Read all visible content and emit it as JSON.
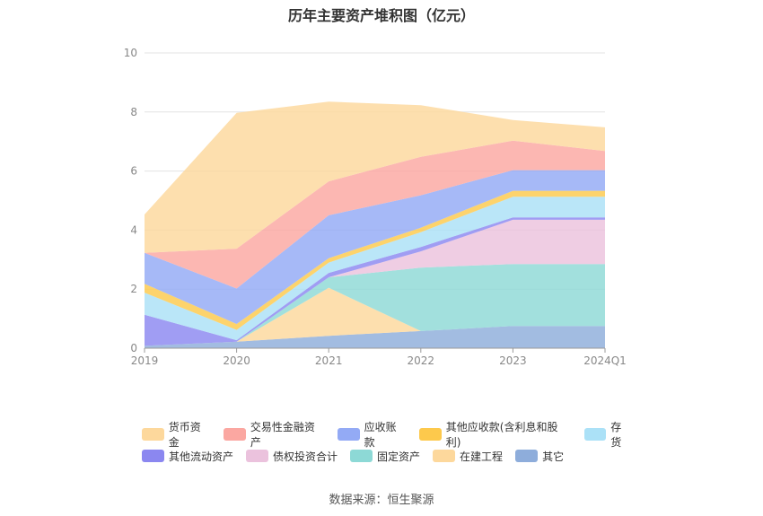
{
  "title": "历年主要资产堆积图（亿元）",
  "source": "数据来源：恒生聚源",
  "chart_data": {
    "type": "area",
    "stacked": true,
    "x": [
      "2019",
      "2020",
      "2021",
      "2022",
      "2023",
      "2024Q1"
    ],
    "ylim": [
      0,
      10
    ],
    "yticks": [
      0,
      2,
      4,
      6,
      8,
      10
    ],
    "grid": true,
    "legend_position": "bottom",
    "series": [
      {
        "name": "其它",
        "color": "#8eaddb",
        "values": [
          0.08,
          0.22,
          0.42,
          0.58,
          0.75,
          0.75
        ]
      },
      {
        "name": "在建工程",
        "color": "#fdd89c",
        "values": [
          0.0,
          0.0,
          1.63,
          0.0,
          0.0,
          0.0
        ]
      },
      {
        "name": "固定资产",
        "color": "#8dd9d6",
        "values": [
          0.0,
          0.0,
          0.35,
          2.15,
          2.1,
          2.1
        ]
      },
      {
        "name": "债权投资合计",
        "color": "#ebc2dd",
        "values": [
          0.0,
          0.0,
          0.0,
          0.55,
          1.5,
          1.5
        ]
      },
      {
        "name": "其他流动资产",
        "color": "#8b87f0",
        "values": [
          1.05,
          0.05,
          0.15,
          0.15,
          0.08,
          0.08
        ]
      },
      {
        "name": "存货",
        "color": "#abe1f7",
        "values": [
          0.75,
          0.35,
          0.35,
          0.5,
          0.7,
          0.7
        ]
      },
      {
        "name": "其他应收款(含利息和股利)",
        "color": "#fdc94c",
        "values": [
          0.3,
          0.2,
          0.15,
          0.15,
          0.2,
          0.2
        ]
      },
      {
        "name": "应收账款",
        "color": "#93aaf5",
        "values": [
          1.05,
          1.2,
          1.45,
          1.1,
          0.7,
          0.7
        ]
      },
      {
        "name": "交易性金融资产",
        "color": "#fba7a1",
        "values": [
          0.0,
          1.35,
          1.15,
          1.3,
          1.0,
          0.65
        ]
      },
      {
        "name": "货币资金",
        "color": "#fdd89c",
        "values": [
          1.3,
          4.6,
          2.7,
          1.75,
          0.7,
          0.8
        ]
      }
    ],
    "legend_order": [
      "货币资金",
      "交易性金融资产",
      "应收账款",
      "其他应收款(含利息和股利)",
      "存货",
      "其他流动资产",
      "债权投资合计",
      "固定资产",
      "在建工程",
      "其它"
    ]
  }
}
